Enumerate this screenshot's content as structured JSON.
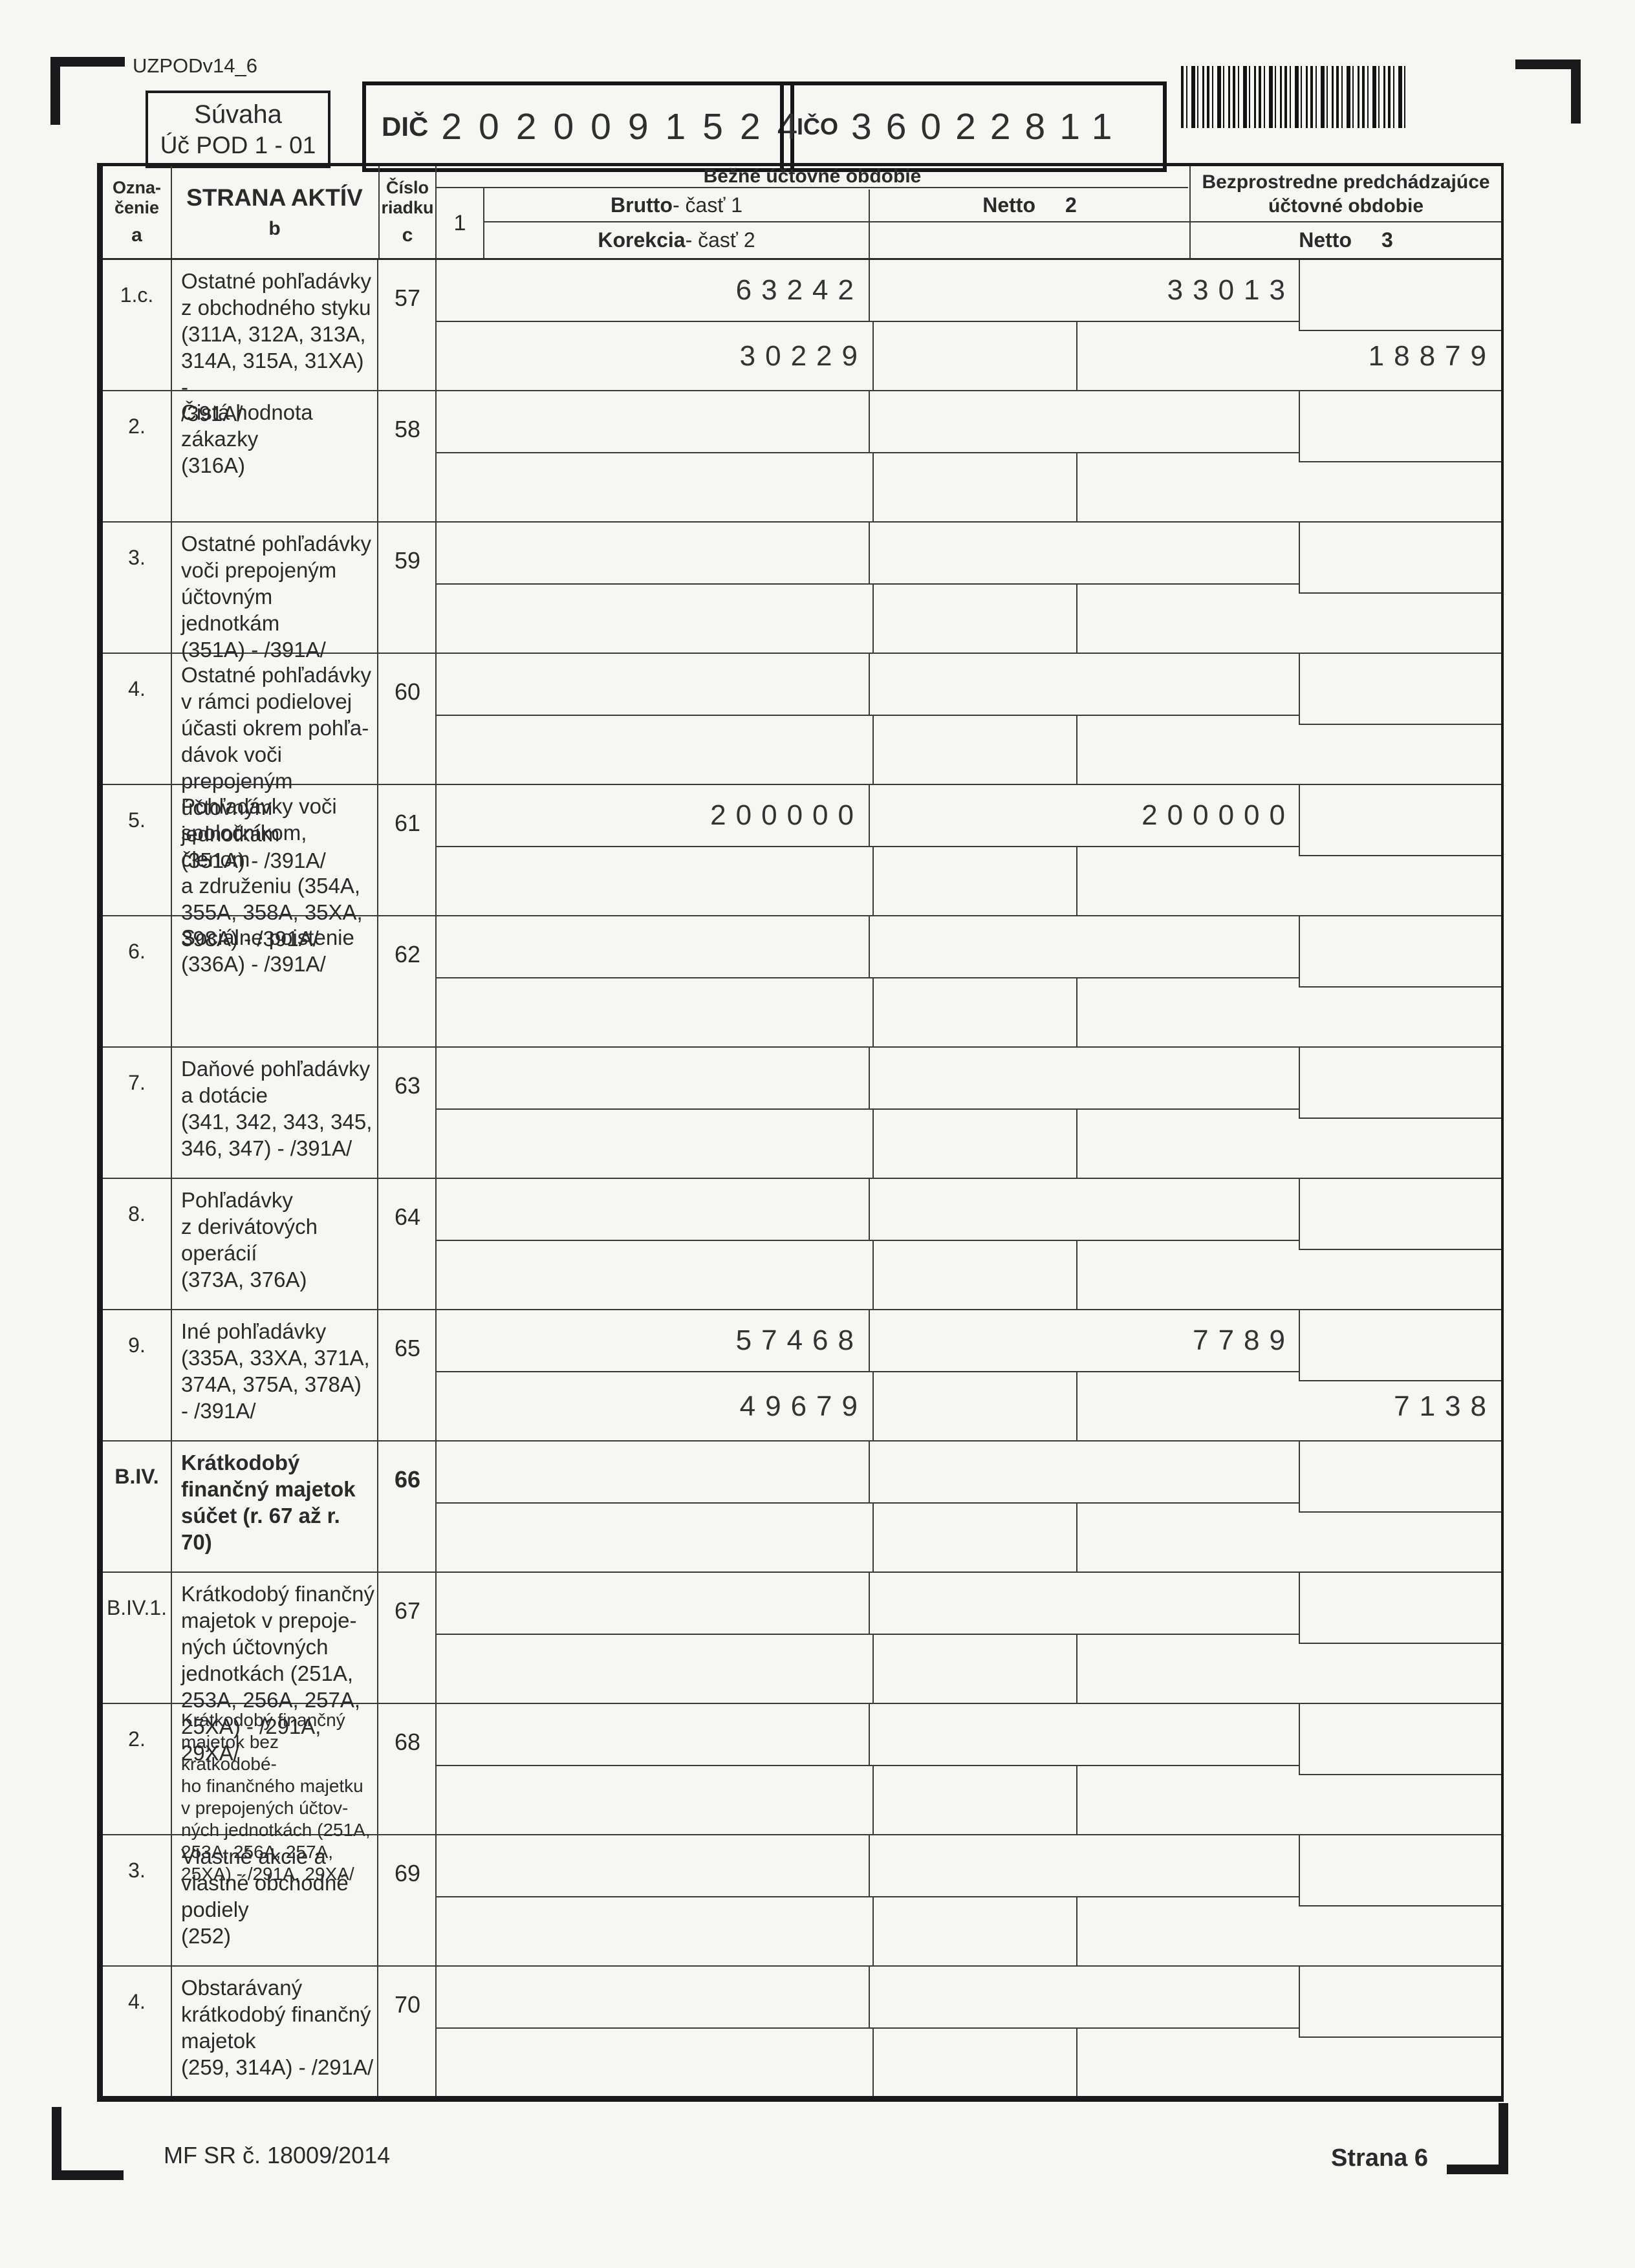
{
  "form": {
    "code": "UZPODv14_6",
    "title": "Súvaha",
    "subtitle": "Úč POD 1 - 01",
    "dic_label": "DIČ",
    "dic_value": "2020091524",
    "ico_label": "IČO",
    "ico_value": "36022811"
  },
  "table_header": {
    "designation_label": "Ozna-\nčenie",
    "designation_letter": "a",
    "assets_label": "STRANA AKTÍV",
    "assets_letter": "b",
    "row_number_label": "Číslo\nriadku",
    "row_number_letter": "c",
    "col_one": "1",
    "current_period": "Bežné účtovné obdobie",
    "brutto_label": "Brutto",
    "brutto_suffix": " - časť 1",
    "korekcia_label": "Korekcia",
    "korekcia_suffix": " - časť 2",
    "netto2_label": "Netto",
    "netto2_num": "2",
    "previous_period": "Bezprostredne predchádzajúce účtovné obdobie",
    "netto3_label": "Netto",
    "netto3_num": "3"
  },
  "rows": [
    {
      "des": "1.c.",
      "label": "Ostatné pohľadávky\nz obchodného styku\n(311A, 312A, 313A,\n314A, 315A, 31XA) -\n/391A/",
      "line": "57",
      "brutto": "63242",
      "netto2": "33013",
      "korekcia": "30229",
      "netto3": "18879",
      "bold": false,
      "small": false
    },
    {
      "des": "2.",
      "label": "Čistá hodnota\nzákazky\n(316A)",
      "line": "58",
      "brutto": "",
      "netto2": "",
      "korekcia": "",
      "netto3": "",
      "bold": false,
      "small": false
    },
    {
      "des": "3.",
      "label": "Ostatné pohľadávky\nvoči prepojeným\núčtovným jednotkám\n(351A) - /391A/",
      "line": "59",
      "brutto": "",
      "netto2": "",
      "korekcia": "",
      "netto3": "",
      "bold": false,
      "small": false
    },
    {
      "des": "4.",
      "label": "Ostatné pohľadávky\nv rámci podielovej\núčasti okrem pohľa-\ndávok voči prepojeným\núčtovným jednotkám\n(351A) - /391A/",
      "line": "60",
      "brutto": "",
      "netto2": "",
      "korekcia": "",
      "netto3": "",
      "bold": false,
      "small": false
    },
    {
      "des": "5.",
      "label": "Pohľadávky voči\nspoločníkom, členom\na združeniu (354A,\n355A, 358A, 35XA,\n398A) - /391A/",
      "line": "61",
      "brutto": "200000",
      "netto2": "200000",
      "korekcia": "",
      "netto3": "",
      "bold": false,
      "small": false
    },
    {
      "des": "6.",
      "label": "Sociálne poistenie\n(336A) - /391A/",
      "line": "62",
      "brutto": "",
      "netto2": "",
      "korekcia": "",
      "netto3": "",
      "bold": false,
      "small": false
    },
    {
      "des": "7.",
      "label": "Daňové pohľadávky\na dotácie\n(341, 342, 343, 345,\n346, 347) - /391A/",
      "line": "63",
      "brutto": "",
      "netto2": "",
      "korekcia": "",
      "netto3": "",
      "bold": false,
      "small": false
    },
    {
      "des": "8.",
      "label": "Pohľadávky\nz derivátových\noperácií\n(373A, 376A)",
      "line": "64",
      "brutto": "",
      "netto2": "",
      "korekcia": "",
      "netto3": "",
      "bold": false,
      "small": false
    },
    {
      "des": "9.",
      "label": "Iné pohľadávky\n(335A, 33XA, 371A,\n374A, 375A, 378A)\n- /391A/",
      "line": "65",
      "brutto": "57468",
      "netto2": "7789",
      "korekcia": "49679",
      "netto3": "7138",
      "bold": false,
      "small": false
    },
    {
      "des": "B.IV.",
      "label": "Krátkodobý\nfinančný majetok\nsúčet (r. 67 až r. 70)",
      "line": "66",
      "brutto": "",
      "netto2": "",
      "korekcia": "",
      "netto3": "",
      "bold": true,
      "small": false
    },
    {
      "des": "B.IV.1.",
      "label": "Krátkodobý finančný\nmajetok v prepoje-\nných účtovných\njednotkách (251A,\n253A, 256A, 257A,\n25XA) - /291A, 29XA/",
      "line": "67",
      "brutto": "",
      "netto2": "",
      "korekcia": "",
      "netto3": "",
      "bold": false,
      "small": false
    },
    {
      "des": "2.",
      "label": "Krátkodobý finančný\nmajetok bez krátkodobé-\nho finančného majetku\nv prepojených účtov-\nných jednotkách (251A,\n253A, 256A, 257A,\n25XA) - /291A, 29XA/",
      "line": "68",
      "brutto": "",
      "netto2": "",
      "korekcia": "",
      "netto3": "",
      "bold": false,
      "small": true
    },
    {
      "des": "3.",
      "label": "Vlastné akcie a\nvlastné obchodné\npodiely\n(252)",
      "line": "69",
      "brutto": "",
      "netto2": "",
      "korekcia": "",
      "netto3": "",
      "bold": false,
      "small": false
    },
    {
      "des": "4.",
      "label": "Obstarávaný\nkrátkodobý finančný\nmajetok\n(259, 314A) - /291A/",
      "line": "70",
      "brutto": "",
      "netto2": "",
      "korekcia": "",
      "netto3": "",
      "bold": false,
      "small": false
    }
  ],
  "footer": {
    "issuer_note": "MF SR č. 18009/2014",
    "page_label": "Strana 6"
  }
}
